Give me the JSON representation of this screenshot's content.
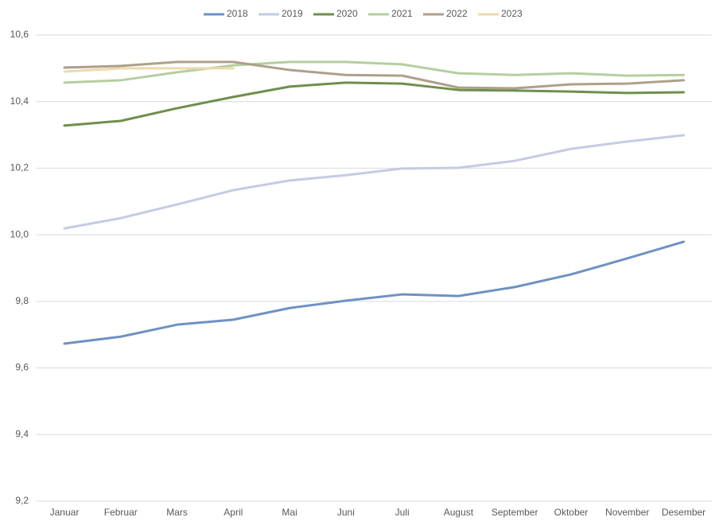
{
  "chart_data": {
    "type": "line",
    "categories": [
      "Januar",
      "Februar",
      "Mars",
      "April",
      "Mai",
      "Juni",
      "Juli",
      "August",
      "September",
      "Oktober",
      "November",
      "Desember"
    ],
    "series": [
      {
        "name": "2018",
        "color": "#6f91c3",
        "values": [
          9.673,
          9.694,
          9.73,
          9.745,
          9.78,
          9.802,
          9.821,
          9.816,
          9.843,
          9.881,
          9.929,
          9.979
        ]
      },
      {
        "name": "2019",
        "color": "#c5cbe3",
        "values": [
          10.019,
          10.05,
          10.091,
          10.134,
          10.163,
          10.179,
          10.199,
          10.201,
          10.222,
          10.258,
          10.28,
          10.299
        ]
      },
      {
        "name": "2020",
        "color": "#6e8f4e",
        "values": [
          10.328,
          10.342,
          10.38,
          10.414,
          10.445,
          10.457,
          10.454,
          10.435,
          10.433,
          10.43,
          10.426,
          10.428
        ]
      },
      {
        "name": "2021",
        "color": "#b4cf9e",
        "values": [
          10.457,
          10.464,
          10.488,
          10.509,
          10.519,
          10.519,
          10.512,
          10.485,
          10.48,
          10.485,
          10.478,
          10.48
        ]
      },
      {
        "name": "2022",
        "color": "#ada08a",
        "values": [
          10.502,
          10.507,
          10.519,
          10.519,
          10.495,
          10.48,
          10.478,
          10.442,
          10.44,
          10.452,
          10.454,
          10.464
        ]
      },
      {
        "name": "2023",
        "color": "#ecd9ae",
        "values": [
          10.49,
          10.5,
          10.5,
          10.5,
          null,
          null,
          null,
          null,
          null,
          null,
          null,
          null
        ]
      }
    ],
    "ylim": [
      9.2,
      10.6
    ],
    "yticks": [
      {
        "value": 9.2,
        "label": "9,2"
      },
      {
        "value": 9.4,
        "label": "9,4"
      },
      {
        "value": 9.6,
        "label": "9,6"
      },
      {
        "value": 9.8,
        "label": "9,8"
      },
      {
        "value": 10.0,
        "label": "10,0"
      },
      {
        "value": 10.2,
        "label": "10,2"
      },
      {
        "value": 10.4,
        "label": "10,4"
      },
      {
        "value": 10.6,
        "label": "10,6"
      }
    ],
    "grid": true,
    "legend": "top"
  }
}
